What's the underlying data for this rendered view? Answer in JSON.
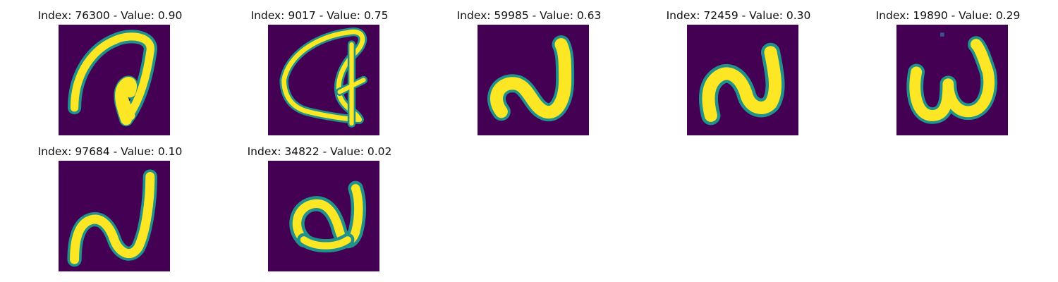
{
  "colors": {
    "background": "#440154",
    "stroke_dark": "#21918c",
    "stroke_mid": "#5ec962",
    "stroke_bright": "#fde725"
  },
  "tiles": [
    {
      "title": "Index: 76300 - Value: 0.90"
    },
    {
      "title": "Index: 9017 - Value: 0.75"
    },
    {
      "title": "Index: 59985 - Value: 0.63"
    },
    {
      "title": "Index: 72459 - Value: 0.30"
    },
    {
      "title": "Index: 19890 - Value: 0.29"
    },
    {
      "title": "Index: 97684 - Value: 0.10"
    },
    {
      "title": "Index: 34822 - Value: 0.02"
    }
  ]
}
